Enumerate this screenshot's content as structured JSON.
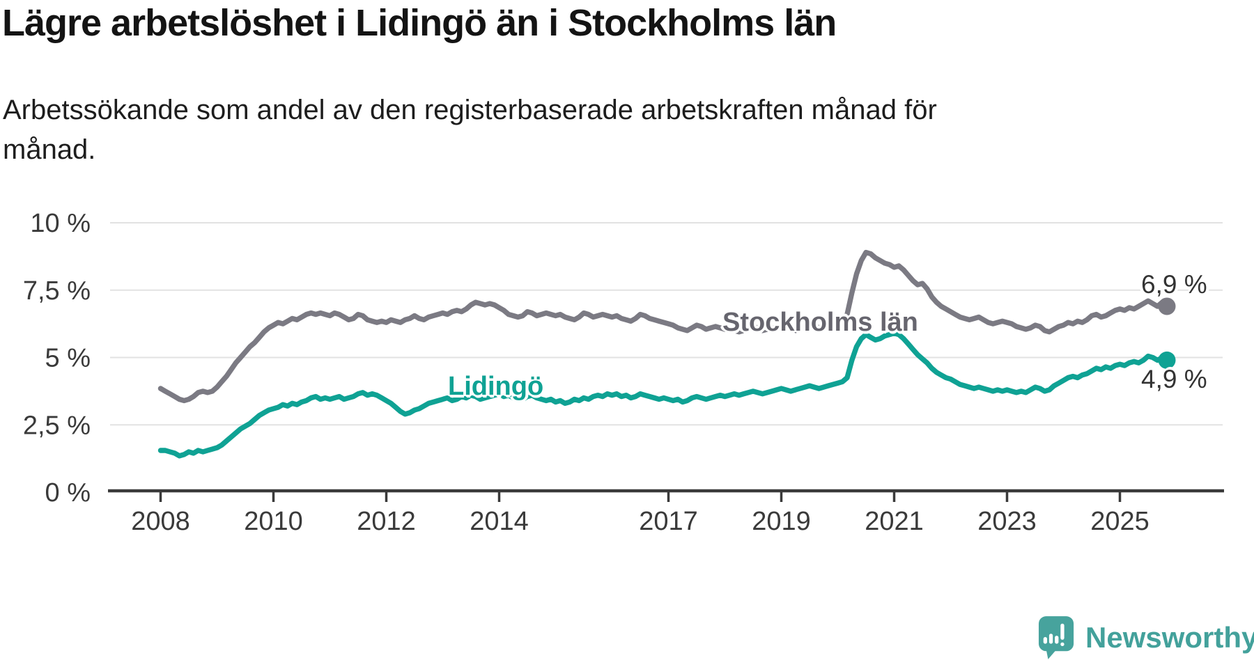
{
  "header": {
    "title": "Lägre arbetslöshet i Lidingö än i Stockholms län",
    "subtitle_lines": [
      "Arbetssökande som andel av den registerbaserade arbetskraften månad för",
      "månad."
    ]
  },
  "chart_data": {
    "type": "line",
    "title": "Lägre arbetslöshet i Lidingö än i Stockholms län",
    "subtitle": "Arbetssökande som andel av den registerbaserade arbetskraften månad för månad.",
    "unit": "%",
    "x_start": "2008-01",
    "x_interval": "month",
    "x_end": "2025-11",
    "x_tick_years": [
      2008,
      2010,
      2012,
      2014,
      2017,
      2019,
      2021,
      2023,
      2025
    ],
    "y_ticks": [
      {
        "value": 0,
        "label": "0 %"
      },
      {
        "value": 2.5,
        "label": "2,5 %"
      },
      {
        "value": 5,
        "label": "5 %"
      },
      {
        "value": 7.5,
        "label": "7,5 %"
      },
      {
        "value": 10,
        "label": "10 %"
      }
    ],
    "ylim": [
      0,
      10
    ],
    "grid": true,
    "legend_position": "inline-labels",
    "series": [
      {
        "name": "Stockholms län",
        "color": "#7b7a83",
        "label_color": "#66656e",
        "end_label": "6,9 %",
        "end_value": 6.9,
        "values": [
          3.85,
          3.75,
          3.65,
          3.55,
          3.45,
          3.4,
          3.45,
          3.55,
          3.7,
          3.75,
          3.7,
          3.75,
          3.9,
          4.1,
          4.3,
          4.55,
          4.8,
          5.0,
          5.2,
          5.4,
          5.55,
          5.75,
          5.95,
          6.1,
          6.2,
          6.3,
          6.25,
          6.35,
          6.45,
          6.4,
          6.5,
          6.6,
          6.65,
          6.6,
          6.65,
          6.6,
          6.55,
          6.65,
          6.6,
          6.5,
          6.4,
          6.45,
          6.6,
          6.55,
          6.4,
          6.35,
          6.3,
          6.35,
          6.3,
          6.4,
          6.35,
          6.3,
          6.4,
          6.45,
          6.55,
          6.45,
          6.4,
          6.5,
          6.55,
          6.6,
          6.65,
          6.6,
          6.7,
          6.75,
          6.7,
          6.8,
          6.95,
          7.05,
          7.0,
          6.95,
          7.0,
          6.95,
          6.85,
          6.75,
          6.6,
          6.55,
          6.5,
          6.55,
          6.7,
          6.65,
          6.55,
          6.6,
          6.65,
          6.6,
          6.55,
          6.6,
          6.5,
          6.45,
          6.4,
          6.5,
          6.65,
          6.6,
          6.5,
          6.55,
          6.6,
          6.55,
          6.5,
          6.55,
          6.45,
          6.4,
          6.35,
          6.45,
          6.6,
          6.55,
          6.45,
          6.4,
          6.35,
          6.3,
          6.25,
          6.2,
          6.1,
          6.05,
          6.0,
          6.1,
          6.2,
          6.15,
          6.05,
          6.1,
          6.15,
          6.1,
          6.05,
          6.1,
          6.0,
          5.95,
          6.0,
          6.05,
          6.15,
          6.1,
          6.0,
          6.05,
          6.1,
          6.05,
          6.1,
          6.15,
          6.05,
          6.0,
          6.05,
          6.15,
          6.25,
          6.2,
          6.1,
          6.15,
          6.2,
          6.25,
          6.3,
          6.4,
          6.6,
          7.4,
          8.1,
          8.6,
          8.9,
          8.85,
          8.7,
          8.6,
          8.5,
          8.45,
          8.35,
          8.4,
          8.25,
          8.05,
          7.85,
          7.7,
          7.75,
          7.55,
          7.25,
          7.05,
          6.9,
          6.8,
          6.7,
          6.6,
          6.5,
          6.45,
          6.4,
          6.45,
          6.5,
          6.4,
          6.3,
          6.25,
          6.3,
          6.35,
          6.3,
          6.25,
          6.15,
          6.1,
          6.05,
          6.1,
          6.2,
          6.15,
          6.0,
          5.95,
          6.05,
          6.15,
          6.2,
          6.3,
          6.25,
          6.35,
          6.3,
          6.4,
          6.55,
          6.6,
          6.5,
          6.55,
          6.65,
          6.75,
          6.8,
          6.75,
          6.85,
          6.8,
          6.9,
          7.0,
          7.1,
          7.0,
          6.9,
          7.05,
          6.9
        ]
      },
      {
        "name": "Lidingö",
        "color": "#0fa294",
        "label_color": "#0fa294",
        "end_label": "4,9 %",
        "end_value": 4.9,
        "values": [
          1.55,
          1.55,
          1.5,
          1.45,
          1.35,
          1.4,
          1.5,
          1.45,
          1.55,
          1.5,
          1.55,
          1.6,
          1.65,
          1.75,
          1.9,
          2.05,
          2.2,
          2.35,
          2.45,
          2.55,
          2.7,
          2.85,
          2.95,
          3.05,
          3.1,
          3.15,
          3.25,
          3.2,
          3.3,
          3.25,
          3.35,
          3.4,
          3.5,
          3.55,
          3.45,
          3.5,
          3.45,
          3.5,
          3.55,
          3.45,
          3.5,
          3.55,
          3.65,
          3.7,
          3.6,
          3.65,
          3.6,
          3.5,
          3.4,
          3.3,
          3.15,
          3.0,
          2.9,
          2.95,
          3.05,
          3.1,
          3.2,
          3.3,
          3.35,
          3.4,
          3.45,
          3.5,
          3.4,
          3.45,
          3.55,
          3.5,
          3.6,
          3.55,
          3.45,
          3.5,
          3.55,
          3.6,
          3.65,
          3.55,
          3.6,
          3.5,
          3.55,
          3.45,
          3.55,
          3.6,
          3.5,
          3.45,
          3.4,
          3.45,
          3.35,
          3.4,
          3.3,
          3.35,
          3.45,
          3.4,
          3.5,
          3.45,
          3.55,
          3.6,
          3.55,
          3.65,
          3.6,
          3.65,
          3.55,
          3.6,
          3.5,
          3.55,
          3.65,
          3.6,
          3.55,
          3.5,
          3.45,
          3.5,
          3.45,
          3.4,
          3.45,
          3.35,
          3.4,
          3.5,
          3.55,
          3.5,
          3.45,
          3.5,
          3.55,
          3.6,
          3.55,
          3.6,
          3.65,
          3.6,
          3.65,
          3.7,
          3.75,
          3.7,
          3.65,
          3.7,
          3.75,
          3.8,
          3.85,
          3.8,
          3.75,
          3.8,
          3.85,
          3.9,
          3.95,
          3.9,
          3.85,
          3.9,
          3.95,
          4.0,
          4.05,
          4.1,
          4.25,
          4.9,
          5.4,
          5.7,
          5.85,
          5.75,
          5.65,
          5.7,
          5.8,
          5.85,
          5.9,
          5.85,
          5.7,
          5.5,
          5.3,
          5.1,
          4.95,
          4.8,
          4.6,
          4.45,
          4.35,
          4.25,
          4.2,
          4.1,
          4.0,
          3.95,
          3.9,
          3.85,
          3.9,
          3.85,
          3.8,
          3.75,
          3.8,
          3.75,
          3.8,
          3.75,
          3.7,
          3.75,
          3.7,
          3.8,
          3.9,
          3.85,
          3.75,
          3.8,
          3.95,
          4.05,
          4.15,
          4.25,
          4.3,
          4.25,
          4.35,
          4.4,
          4.5,
          4.6,
          4.55,
          4.65,
          4.6,
          4.7,
          4.75,
          4.7,
          4.8,
          4.85,
          4.8,
          4.9,
          5.05,
          5.0,
          4.9,
          5.0,
          4.9
        ]
      }
    ]
  },
  "footer": {
    "brand": "Newsworthy"
  },
  "colors": {
    "background": "#ffffff",
    "gridline": "#e2e2e2",
    "axis": "#3a3a3a",
    "tick_text": "#3a3a3a",
    "stockholm_line": "#7b7a83",
    "lidingo_line": "#0fa294",
    "brand_teal": "#43a19b",
    "logo_bubble": "#47a39d"
  }
}
